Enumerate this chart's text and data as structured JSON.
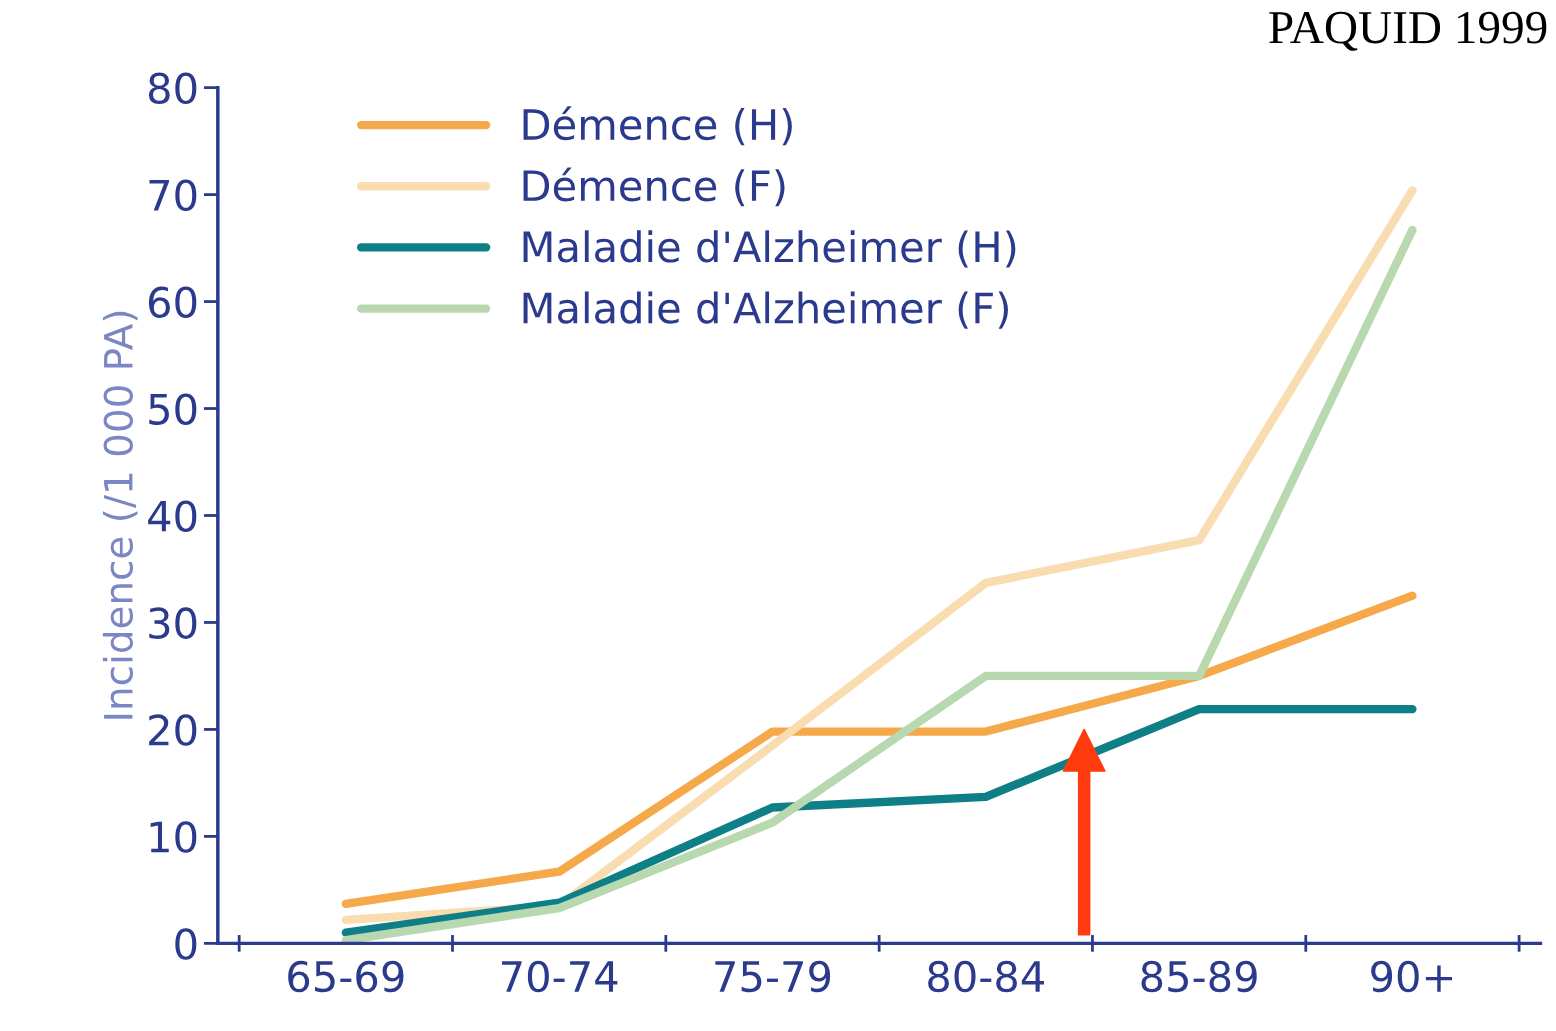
{
  "chart_data": {
    "type": "line",
    "title": "PAQUID 1999",
    "ylabel": "Incidence (/1 000 PA)",
    "categories": [
      "65-69",
      "70-74",
      "75-79",
      "80-84",
      "85-89",
      "90+"
    ],
    "series": [
      {
        "name": "Démence (H)",
        "color": "#f5a94a",
        "values": [
          3.7,
          6.7,
          19.8,
          19.8,
          25,
          32.5
        ]
      },
      {
        "name": "Démence (F)",
        "color": "#f9dcb0",
        "values": [
          2.2,
          3.5,
          18.5,
          33.7,
          37.7,
          70.4
        ]
      },
      {
        "name": "Maladie d'Alzheimer (H)",
        "color": "#0e7f86",
        "values": [
          1,
          3.8,
          12.7,
          13.7,
          21.9,
          21.9
        ]
      },
      {
        "name": "Maladie d'Alzheimer (F)",
        "color": "#b8d9b0",
        "values": [
          0.3,
          3.3,
          11.3,
          25,
          25,
          66.7
        ]
      }
    ],
    "ylim": [
      0,
      80
    ],
    "yticks": [
      0,
      10,
      20,
      30,
      40,
      50,
      60,
      70,
      80
    ],
    "grid": false,
    "legend": "top left",
    "marker": "none",
    "line_style": "solid"
  }
}
